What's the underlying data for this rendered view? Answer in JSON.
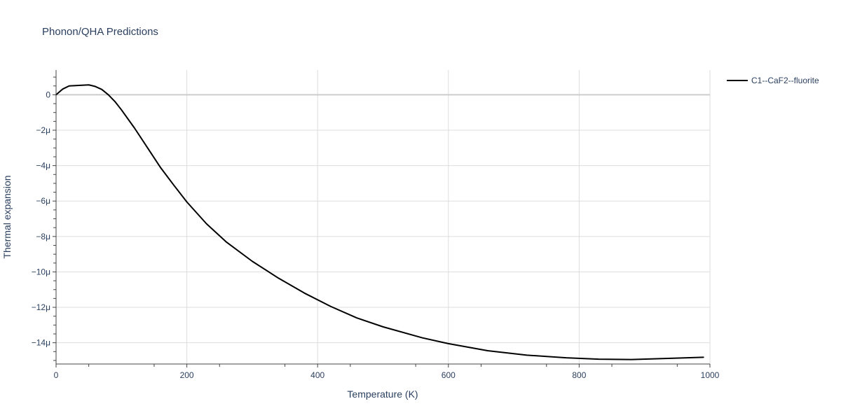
{
  "chart_data": {
    "type": "line",
    "title": "Phonon/QHA Predictions",
    "xlabel": "Temperature (K)",
    "ylabel": "Thermal expansion",
    "xlim": [
      0,
      1000
    ],
    "ylim": [
      -15.2,
      1.4
    ],
    "x_ticks": [
      0,
      200,
      400,
      600,
      800,
      1000
    ],
    "x_tick_labels": [
      "0",
      "200",
      "400",
      "600",
      "800",
      "1000"
    ],
    "y_ticks": [
      0,
      -2,
      -4,
      -6,
      -8,
      -10,
      -12,
      -14
    ],
    "y_tick_labels": [
      "0",
      "−2μ",
      "−4μ",
      "−6μ",
      "−8μ",
      "−10μ",
      "−12μ",
      "−14μ"
    ],
    "y_unit_scale": "μ (1e-6)",
    "grid": true,
    "legend_position": "top-right",
    "series": [
      {
        "name": "C1--CaF2--fluorite",
        "color": "#000000",
        "x": [
          0,
          10,
          20,
          30,
          40,
          50,
          60,
          70,
          80,
          90,
          100,
          120,
          140,
          160,
          180,
          200,
          230,
          260,
          300,
          340,
          380,
          420,
          460,
          500,
          560,
          600,
          660,
          720,
          780,
          830,
          880,
          940,
          990
        ],
        "y": [
          0.0,
          0.32,
          0.5,
          0.52,
          0.54,
          0.56,
          0.47,
          0.3,
          0.0,
          -0.38,
          -0.85,
          -1.88,
          -3.0,
          -4.12,
          -5.1,
          -6.05,
          -7.28,
          -8.3,
          -9.4,
          -10.35,
          -11.2,
          -11.95,
          -12.6,
          -13.1,
          -13.72,
          -14.05,
          -14.45,
          -14.7,
          -14.85,
          -14.93,
          -14.95,
          -14.88,
          -14.82
        ]
      }
    ]
  }
}
